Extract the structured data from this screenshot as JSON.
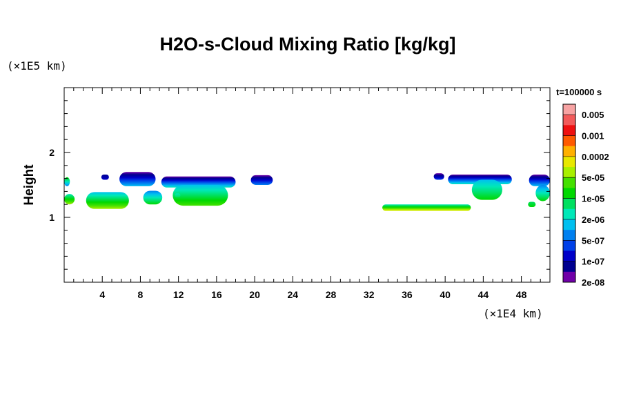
{
  "chart_data": {
    "type": "heatmap",
    "title": "H2O-s-Cloud Mixing Ratio [kg/kg]",
    "xlabel": "",
    "ylabel": "Height",
    "x_unit_label": "(×1E4 km)",
    "y_unit_label": "(×1E5 km)",
    "time_label": "t=100000 s",
    "xlim": [
      0,
      51
    ],
    "ylim": [
      0,
      3
    ],
    "x_ticks": [
      4,
      8,
      12,
      16,
      20,
      24,
      28,
      32,
      36,
      40,
      44,
      48
    ],
    "y_ticks": [
      1,
      2
    ],
    "x_minor_step": 1,
    "y_minor_step": 0.2,
    "colorbar": {
      "labels": [
        "0.005",
        "0.001",
        "0.0002",
        "5e-05",
        "1e-05",
        "2e-06",
        "5e-07",
        "1e-07",
        "2e-08"
      ],
      "colors": [
        "#f7a3a3",
        "#f25a5a",
        "#ee1010",
        "#ff5a00",
        "#ffb000",
        "#e8e800",
        "#a8f000",
        "#44e000",
        "#00d800",
        "#00e060",
        "#00e8b8",
        "#00c0f0",
        "#0080f0",
        "#0040e8",
        "#0000c8",
        "#000090",
        "#7000a8"
      ]
    },
    "blobs": [
      {
        "x": [
          0,
          0.6
        ],
        "y": [
          1.48,
          1.62
        ],
        "top": 8,
        "bottom": 12
      },
      {
        "x": [
          0,
          1.1
        ],
        "y": [
          1.2,
          1.36
        ],
        "top": 10,
        "bottom": 6
      },
      {
        "x": [
          2.3,
          6.8
        ],
        "y": [
          1.13,
          1.39
        ],
        "top": 11,
        "bottom": 6
      },
      {
        "x": [
          3.9,
          4.7
        ],
        "y": [
          1.58,
          1.66
        ],
        "top": 15,
        "bottom": 14
      },
      {
        "x": [
          5.8,
          9.6
        ],
        "y": [
          1.48,
          1.7
        ],
        "top": 16,
        "bottom": 11
      },
      {
        "x": [
          8.3,
          10.3
        ],
        "y": [
          1.2,
          1.41
        ],
        "top": 12,
        "bottom": 8
      },
      {
        "x": [
          10.2,
          18
        ],
        "y": [
          1.46,
          1.63
        ],
        "top": 16,
        "bottom": 10
      },
      {
        "x": [
          11.4,
          17.2
        ],
        "y": [
          1.18,
          1.5
        ],
        "top": 11,
        "bottom": 7
      },
      {
        "x": [
          11.6,
          12.2
        ],
        "y": [
          1.31,
          1.37
        ],
        "top": 10,
        "bottom": 9
      },
      {
        "x": [
          19.6,
          21.9
        ],
        "y": [
          1.5,
          1.65
        ],
        "top": 16,
        "bottom": 12
      },
      {
        "x": [
          33.4,
          42.7
        ],
        "y": [
          1.1,
          1.2
        ],
        "top": 10,
        "bottom": 5
      },
      {
        "x": [
          38.8,
          39.9
        ],
        "y": [
          1.58,
          1.68
        ],
        "top": 16,
        "bottom": 13
      },
      {
        "x": [
          40.3,
          47
        ],
        "y": [
          1.51,
          1.66
        ],
        "top": 16,
        "bottom": 10
      },
      {
        "x": [
          42.8,
          46
        ],
        "y": [
          1.27,
          1.58
        ],
        "top": 11,
        "bottom": 8
      },
      {
        "x": [
          48.8,
          51
        ],
        "y": [
          1.48,
          1.66
        ],
        "top": 16,
        "bottom": 11
      },
      {
        "x": [
          49.5,
          51
        ],
        "y": [
          1.25,
          1.5
        ],
        "top": 12,
        "bottom": 8
      },
      {
        "x": [
          48.7,
          49.5
        ],
        "y": [
          1.16,
          1.24
        ],
        "top": 9,
        "bottom": 8
      }
    ]
  }
}
